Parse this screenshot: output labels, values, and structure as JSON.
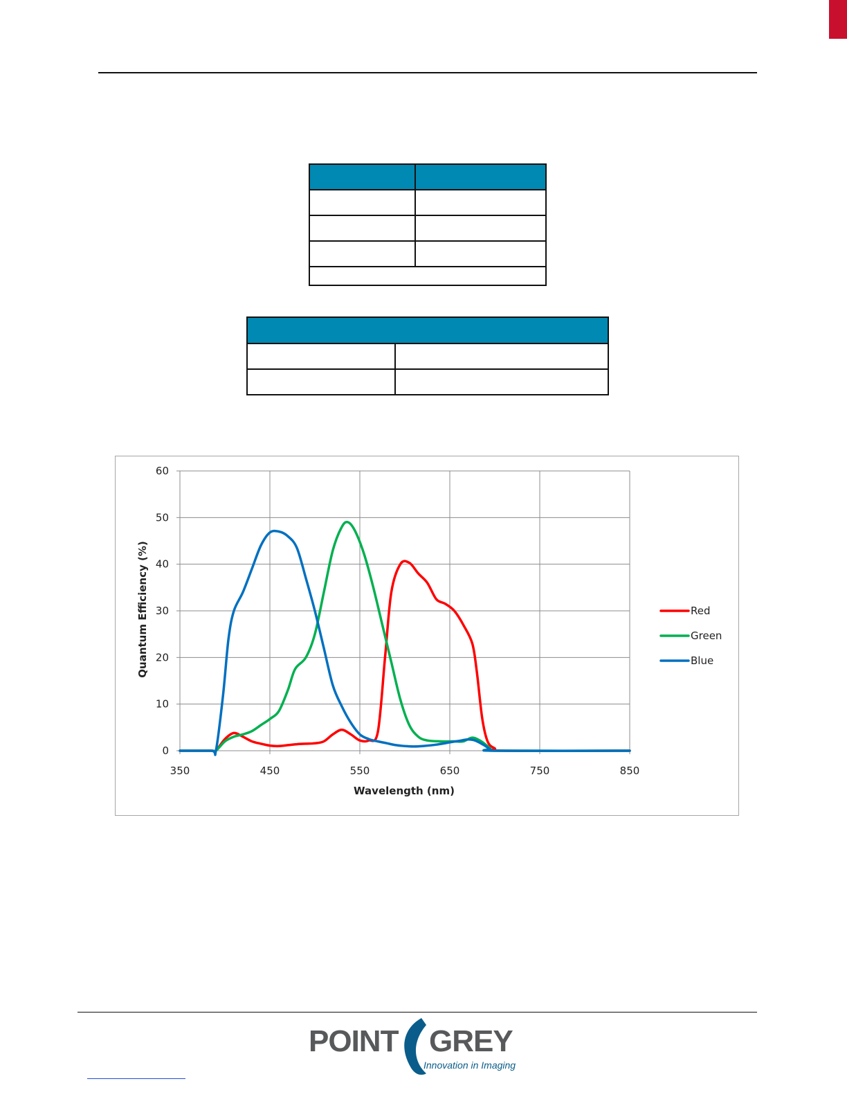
{
  "colors": {
    "table_header": "#0089b2",
    "red_series": "#ff0000",
    "green_series": "#00b050",
    "blue_series": "#0070c0",
    "brand_red": "#c8102e",
    "logo_gray": "#58595b",
    "logo_blue": "#0a5d8a"
  },
  "logo": {
    "wordmark_left": "POINT",
    "wordmark_right": "GREY",
    "tagline": "Innovation in Imaging"
  },
  "chart_data": {
    "type": "line",
    "xlabel": "Wavelength (nm)",
    "ylabel": "Quantum Efficiency (%)",
    "xlim": [
      350,
      850
    ],
    "ylim": [
      0,
      60
    ],
    "x_ticks": [
      "350",
      "450",
      "550",
      "650",
      "750",
      "850"
    ],
    "y_ticks": [
      "0",
      "10",
      "20",
      "30",
      "40",
      "50",
      "60"
    ],
    "grid": true,
    "legend_position": "right",
    "series": [
      {
        "name": "Red",
        "color": "#ff0000",
        "points": [
          [
            350,
            0
          ],
          [
            385,
            0
          ],
          [
            390,
            0
          ],
          [
            400,
            2.5
          ],
          [
            410,
            3.8
          ],
          [
            420,
            3
          ],
          [
            430,
            2
          ],
          [
            440,
            1.5
          ],
          [
            450,
            1.1
          ],
          [
            460,
            1
          ],
          [
            470,
            1.2
          ],
          [
            480,
            1.4
          ],
          [
            490,
            1.5
          ],
          [
            500,
            1.6
          ],
          [
            510,
            2
          ],
          [
            520,
            3.5
          ],
          [
            530,
            4.5
          ],
          [
            540,
            3.5
          ],
          [
            550,
            2.2
          ],
          [
            560,
            2.2
          ],
          [
            570,
            4
          ],
          [
            578,
            20
          ],
          [
            585,
            34
          ],
          [
            595,
            40
          ],
          [
            605,
            40.3
          ],
          [
            615,
            38
          ],
          [
            625,
            36
          ],
          [
            635,
            32.5
          ],
          [
            645,
            31.5
          ],
          [
            655,
            30
          ],
          [
            665,
            27
          ],
          [
            675,
            23
          ],
          [
            680,
            17
          ],
          [
            686,
            7
          ],
          [
            692,
            2
          ],
          [
            700,
            0.5
          ],
          [
            710,
            0
          ],
          [
            850,
            0
          ]
        ]
      },
      {
        "name": "Green",
        "color": "#00b050",
        "points": [
          [
            350,
            0
          ],
          [
            385,
            0
          ],
          [
            390,
            0
          ],
          [
            400,
            2
          ],
          [
            410,
            3
          ],
          [
            420,
            3.5
          ],
          [
            430,
            4.2
          ],
          [
            440,
            5.5
          ],
          [
            450,
            6.8
          ],
          [
            460,
            8.5
          ],
          [
            470,
            13
          ],
          [
            478,
            17.5
          ],
          [
            490,
            20
          ],
          [
            500,
            25
          ],
          [
            510,
            34
          ],
          [
            520,
            43
          ],
          [
            530,
            48
          ],
          [
            537,
            49
          ],
          [
            545,
            47
          ],
          [
            555,
            42
          ],
          [
            565,
            35
          ],
          [
            575,
            27
          ],
          [
            585,
            19
          ],
          [
            595,
            11
          ],
          [
            605,
            5.5
          ],
          [
            615,
            3
          ],
          [
            625,
            2.2
          ],
          [
            640,
            2
          ],
          [
            655,
            2
          ],
          [
            665,
            2
          ],
          [
            675,
            2.8
          ],
          [
            685,
            2
          ],
          [
            695,
            0.5
          ],
          [
            700,
            0
          ],
          [
            850,
            0
          ]
        ]
      },
      {
        "name": "Blue",
        "color": "#0070c0",
        "points": [
          [
            350,
            0
          ],
          [
            385,
            0
          ],
          [
            390,
            0
          ],
          [
            398,
            12
          ],
          [
            404,
            24
          ],
          [
            410,
            30
          ],
          [
            420,
            34
          ],
          [
            430,
            39
          ],
          [
            440,
            44
          ],
          [
            450,
            46.8
          ],
          [
            460,
            47
          ],
          [
            470,
            46
          ],
          [
            480,
            43.5
          ],
          [
            490,
            37
          ],
          [
            500,
            30
          ],
          [
            510,
            22
          ],
          [
            520,
            14
          ],
          [
            530,
            9.5
          ],
          [
            540,
            6
          ],
          [
            550,
            3.5
          ],
          [
            560,
            2.5
          ],
          [
            570,
            2
          ],
          [
            580,
            1.6
          ],
          [
            590,
            1.2
          ],
          [
            600,
            1
          ],
          [
            610,
            0.9
          ],
          [
            620,
            1
          ],
          [
            635,
            1.3
          ],
          [
            650,
            1.8
          ],
          [
            660,
            2.1
          ],
          [
            670,
            2.4
          ],
          [
            678,
            2.2
          ],
          [
            688,
            1.2
          ],
          [
            695,
            0.3
          ],
          [
            700,
            0
          ],
          [
            850,
            0
          ]
        ]
      }
    ]
  }
}
